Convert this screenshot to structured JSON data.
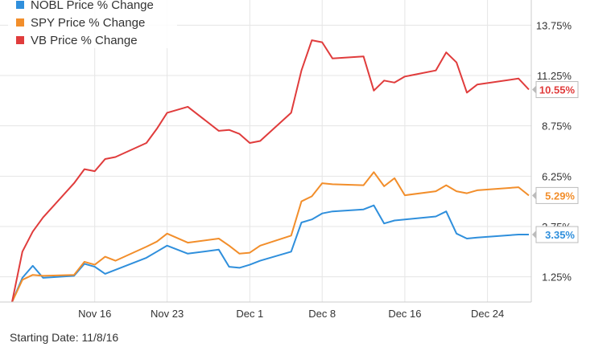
{
  "chart_data": {
    "type": "line",
    "x_dates": [
      "11/8",
      "11/9",
      "11/10",
      "11/11",
      "11/14",
      "11/15",
      "11/16",
      "11/17",
      "11/18",
      "11/21",
      "11/22",
      "11/23",
      "11/25",
      "11/28",
      "11/29",
      "11/30",
      "12/1",
      "12/2",
      "12/5",
      "12/6",
      "12/7",
      "12/8",
      "12/9",
      "12/12",
      "12/13",
      "12/14",
      "12/15",
      "12/16",
      "12/19",
      "12/20",
      "12/21",
      "12/22",
      "12/23",
      "12/27",
      "12/28"
    ],
    "series": [
      {
        "name": "NOBL Price % Change",
        "color": "#2f8fdc",
        "values": [
          0.0,
          1.2,
          1.8,
          1.2,
          1.3,
          1.9,
          1.75,
          1.4,
          1.6,
          2.2,
          2.5,
          2.8,
          2.4,
          2.6,
          1.75,
          1.7,
          1.85,
          2.05,
          2.5,
          3.95,
          4.1,
          4.4,
          4.5,
          4.6,
          4.8,
          3.9,
          4.05,
          4.1,
          4.25,
          4.5,
          3.4,
          3.15,
          3.2,
          3.35,
          3.35
        ],
        "end_label": "3.35%"
      },
      {
        "name": "SPY Price % Change",
        "color": "#f28e2b",
        "values": [
          0.0,
          1.1,
          1.35,
          1.3,
          1.35,
          2.0,
          1.85,
          2.25,
          2.05,
          2.75,
          3.0,
          3.4,
          2.95,
          3.15,
          2.8,
          2.4,
          2.45,
          2.8,
          3.3,
          5.0,
          5.25,
          5.9,
          5.85,
          5.8,
          6.45,
          5.75,
          6.15,
          5.3,
          5.5,
          5.8,
          5.5,
          5.4,
          5.55,
          5.7,
          5.29
        ],
        "end_label": "5.29%"
      },
      {
        "name": "VB Price % Change",
        "color": "#e03c3c",
        "values": [
          0.0,
          2.5,
          3.5,
          4.2,
          5.9,
          6.6,
          6.5,
          7.1,
          7.2,
          7.9,
          8.6,
          9.4,
          9.7,
          8.5,
          8.55,
          8.35,
          7.9,
          8.0,
          9.4,
          11.5,
          13.0,
          12.9,
          12.1,
          12.2,
          10.5,
          11.0,
          10.9,
          11.2,
          11.5,
          12.4,
          11.9,
          10.4,
          10.8,
          11.1,
          10.55
        ],
        "end_label": "10.55%"
      }
    ],
    "y_ticks": [
      "1.25%",
      "3.75%",
      "6.25%",
      "8.75%",
      "11.25%",
      "13.75%"
    ],
    "x_ticks": [
      "Nov 16",
      "Nov 23",
      "Dec 1",
      "Dec 8",
      "Dec 16",
      "Dec 24"
    ],
    "ylim": [
      0,
      15
    ],
    "grid": true,
    "legend_position": "top-left"
  },
  "footer": {
    "starting_date": "Starting Date: 11/8/16"
  }
}
